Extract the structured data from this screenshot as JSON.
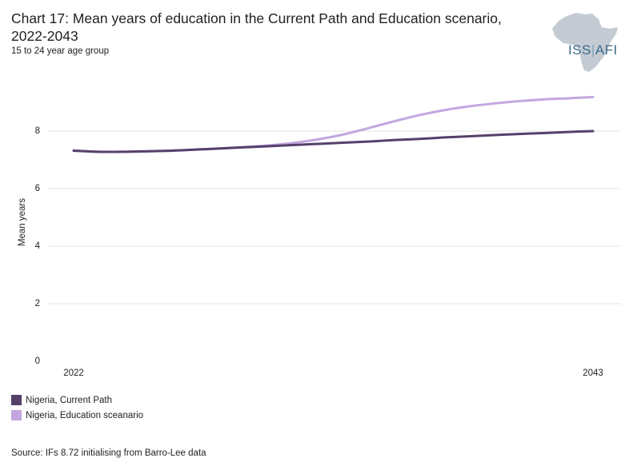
{
  "chart_data": {
    "type": "line",
    "title": "Chart 17: Mean years of education in the Current Path and Education scenario, 2022-2043",
    "subtitle": "15 to 24 year age group",
    "xlabel": "",
    "ylabel": "Mean years",
    "x_tick_labels": [
      "2022",
      "2043"
    ],
    "y_ticks": [
      0,
      2,
      4,
      6,
      8
    ],
    "xlim": [
      2022,
      2043
    ],
    "ylim": [
      0,
      10
    ],
    "grid": true,
    "legend_position": "bottom-left",
    "x": [
      2022,
      2023,
      2024,
      2025,
      2026,
      2027,
      2028,
      2029,
      2030,
      2031,
      2032,
      2033,
      2034,
      2035,
      2036,
      2037,
      2038,
      2039,
      2040,
      2041,
      2042,
      2043
    ],
    "series": [
      {
        "name": "Nigeria, Current Path",
        "color": "#55406b",
        "values": [
          7.32,
          7.28,
          7.28,
          7.3,
          7.32,
          7.36,
          7.4,
          7.44,
          7.48,
          7.52,
          7.56,
          7.6,
          7.64,
          7.69,
          7.73,
          7.78,
          7.82,
          7.86,
          7.9,
          7.93,
          7.97,
          8.0
        ]
      },
      {
        "name": "Nigeria, Education sceanario",
        "color": "#c3a6df",
        "values": [
          7.32,
          7.28,
          7.28,
          7.3,
          7.32,
          7.36,
          7.4,
          7.45,
          7.51,
          7.6,
          7.73,
          7.9,
          8.12,
          8.35,
          8.56,
          8.73,
          8.86,
          8.96,
          9.04,
          9.1,
          9.14,
          9.18
        ]
      }
    ]
  },
  "source": "Source: IFs 8.72 initialising from Barro-Lee data",
  "logo": {
    "text_iss": "ISS",
    "text_sep": "|",
    "text_afi": "AFI",
    "map_color": "#c5cbd3",
    "text_color": "#3a6c8c"
  }
}
